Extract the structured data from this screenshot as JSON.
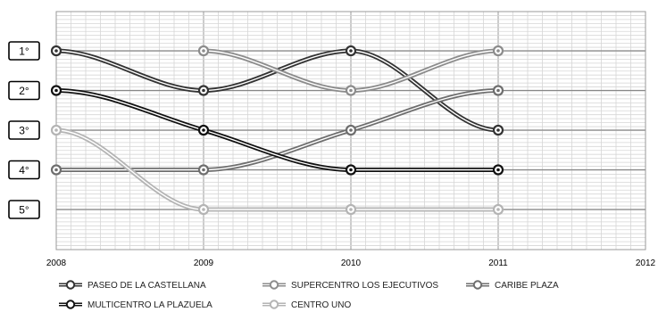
{
  "chart_data": {
    "type": "line",
    "x": [
      2008,
      2009,
      2010,
      2011
    ],
    "x_ticks": [
      "2008",
      "2009",
      "2010",
      "2011",
      "2012"
    ],
    "xlim": [
      2008,
      2012
    ],
    "y_labels": [
      "1°",
      "2°",
      "3°",
      "4°",
      "5°"
    ],
    "ylim": [
      1,
      5
    ],
    "y_inverted": true,
    "grid": true,
    "legend_position": "bottom",
    "series": [
      {
        "name": "PASEO DE LA CASTELLANA",
        "color": "#333333",
        "values": [
          1,
          2,
          1,
          3
        ]
      },
      {
        "name": "SUPERCENTRO LOS EJECUTIVOS",
        "color": "#8c8c8c",
        "values": [
          null,
          1,
          2,
          1
        ]
      },
      {
        "name": "CARIBE PLAZA",
        "color": "#6e6e6e",
        "values": [
          4,
          4,
          3,
          2
        ]
      },
      {
        "name": "MULTICENTRO LA PLAZUELA",
        "color": "#111111",
        "values": [
          2,
          3,
          4,
          4
        ]
      },
      {
        "name": "CENTRO UNO",
        "color": "#b4b4b4",
        "values": [
          3,
          5,
          5,
          5
        ]
      }
    ]
  }
}
